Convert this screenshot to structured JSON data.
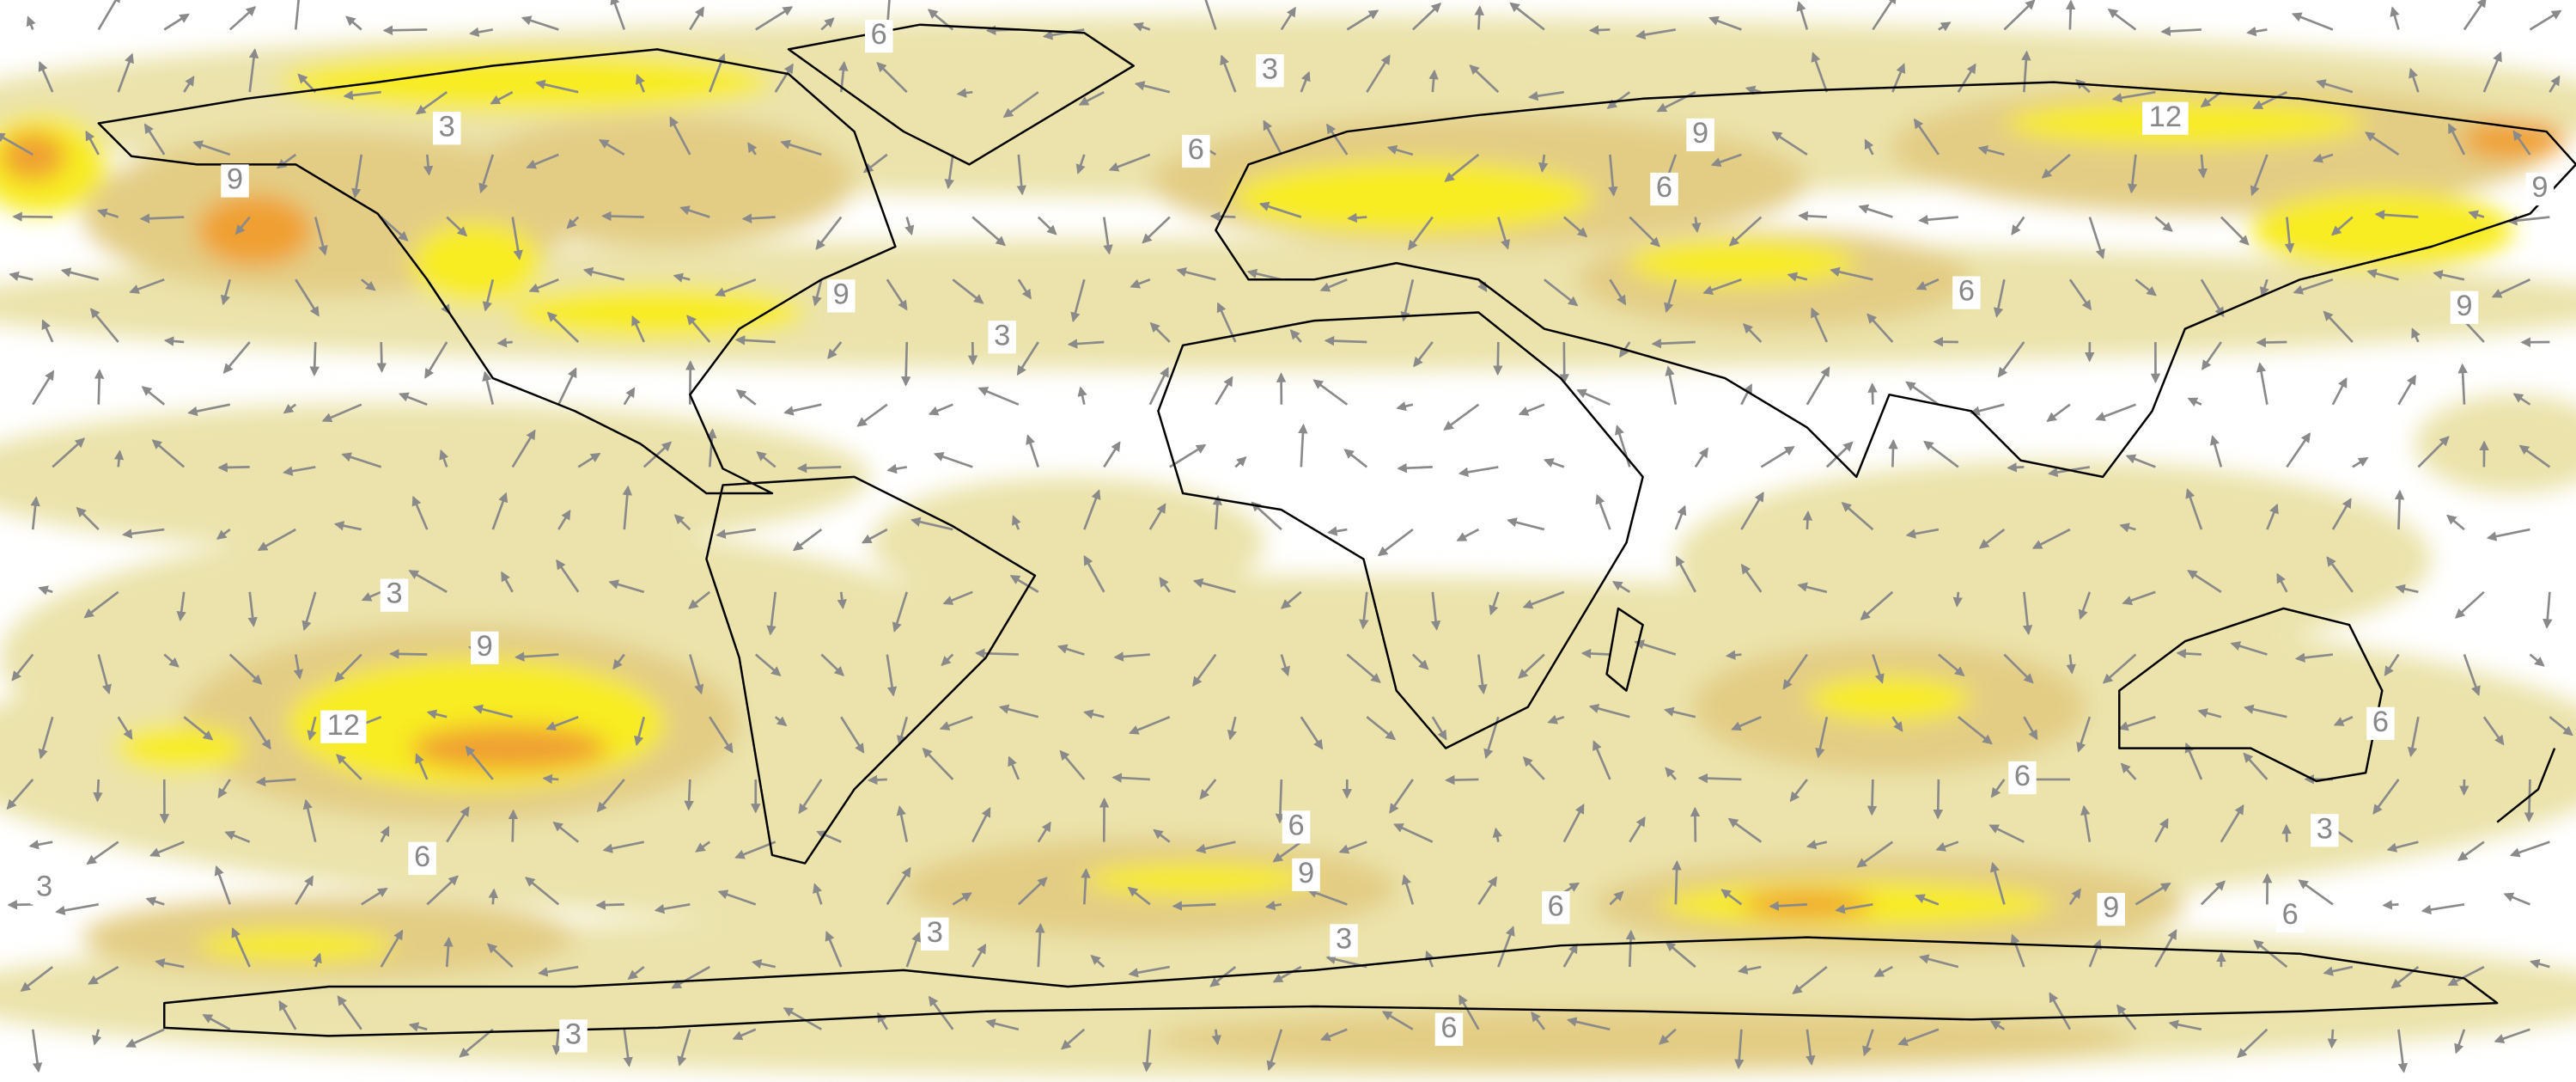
{
  "contour_labels": [
    6,
    3,
    3,
    9,
    6,
    9,
    12,
    6,
    9,
    9,
    3,
    6,
    9,
    3,
    9,
    12,
    6,
    6,
    6,
    6,
    9,
    3,
    3,
    6,
    9,
    6,
    3,
    3,
    3,
    6
  ]
}
